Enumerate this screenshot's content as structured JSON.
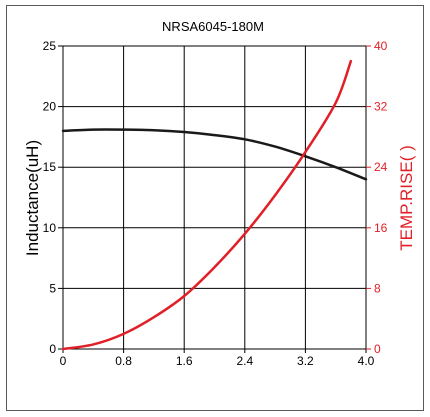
{
  "chart_data": {
    "type": "line",
    "title": "NRSA6045-180M",
    "xlabel": "",
    "x_ticks": [
      "0",
      "0.8",
      "1.6",
      "2.4",
      "3.2",
      "4.0"
    ],
    "xlim": [
      0,
      4.0
    ],
    "y_left": {
      "label": "Inductance(uH)",
      "ticks": [
        "0",
        "5",
        "10",
        "15",
        "20",
        "25"
      ],
      "lim": [
        0,
        25
      ],
      "color": "#000000"
    },
    "y_right": {
      "label": "TEMP.RISE(   )",
      "ticks": [
        "0",
        "8",
        "16",
        "24",
        "32",
        "40"
      ],
      "lim": [
        0,
        40
      ],
      "color": "#e11f26"
    },
    "grid": true,
    "series": [
      {
        "axis": "left",
        "color": "#1a1a1a",
        "x": [
          0,
          0.4,
          0.8,
          1.2,
          1.6,
          2.0,
          2.4,
          2.8,
          3.2,
          3.6,
          4.0
        ],
        "y": [
          18.0,
          18.1,
          18.1,
          18.05,
          17.9,
          17.65,
          17.3,
          16.7,
          15.9,
          15.0,
          14.0
        ]
      },
      {
        "axis": "right",
        "color": "#e11f26",
        "x": [
          0,
          0.4,
          0.8,
          1.2,
          1.6,
          2.0,
          2.4,
          2.8,
          3.2,
          3.6,
          3.8
        ],
        "y": [
          0,
          0.6,
          2.0,
          4.2,
          7.0,
          10.8,
          15.2,
          20.3,
          26.0,
          32.5,
          38.0
        ]
      }
    ]
  }
}
